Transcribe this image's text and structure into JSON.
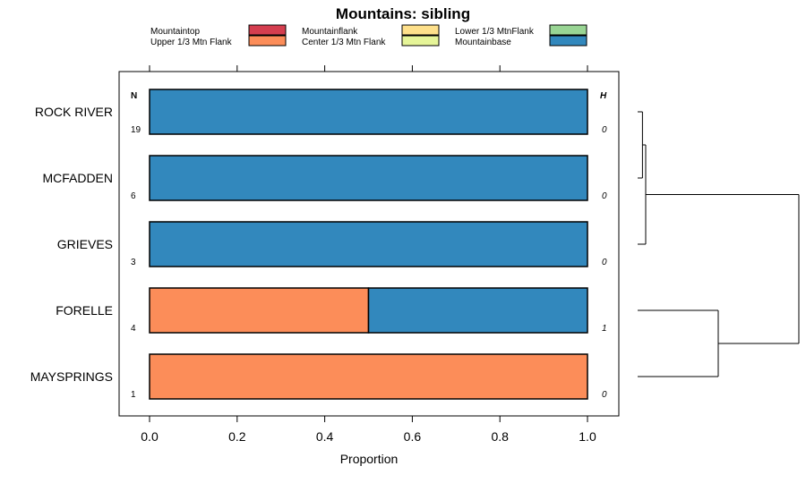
{
  "chart_data": {
    "type": "bar",
    "orientation": "horizontal",
    "stacked": true,
    "title": "Mountains: sibling",
    "xlabel": "Proportion",
    "ylabel": "",
    "xlim": [
      0,
      1
    ],
    "xticks": [
      0.0,
      0.2,
      0.4,
      0.6,
      0.8,
      1.0
    ],
    "xtick_labels": [
      "0.0",
      "0.2",
      "0.4",
      "0.6",
      "0.8",
      "1.0"
    ],
    "n_header": "N",
    "h_header": "H",
    "categories": [
      "ROCK RIVER",
      "MCFADDEN",
      "GRIEVES",
      "FORELLE",
      "MAYSPRINGS"
    ],
    "n_values": [
      "19",
      "6",
      "3",
      "4",
      "1"
    ],
    "h_values": [
      "0",
      "0",
      "0",
      "1",
      "0"
    ],
    "legend": [
      {
        "name": "Mountaintop",
        "color": "#d53e4f"
      },
      {
        "name": "Upper 1/3 Mtn Flank",
        "color": "#fc8d59"
      },
      {
        "name": "Mountainflank",
        "color": "#fee08b"
      },
      {
        "name": "Center 1/3 Mtn Flank",
        "color": "#e6f598"
      },
      {
        "name": "Lower 1/3 MtnFlank",
        "color": "#99d594"
      },
      {
        "name": "Mountainbase",
        "color": "#3288bd"
      }
    ],
    "series": [
      {
        "name": "Mountaintop",
        "color": "#d53e4f",
        "values": [
          0,
          0,
          0,
          0,
          0
        ]
      },
      {
        "name": "Upper 1/3 Mtn Flank",
        "color": "#fc8d59",
        "values": [
          0,
          0,
          0,
          0.5,
          1
        ]
      },
      {
        "name": "Mountainflank",
        "color": "#fee08b",
        "values": [
          0,
          0,
          0,
          0,
          0
        ]
      },
      {
        "name": "Center 1/3 Mtn Flank",
        "color": "#e6f598",
        "values": [
          0,
          0,
          0,
          0,
          0
        ]
      },
      {
        "name": "Lower 1/3 MtnFlank",
        "color": "#99d594",
        "values": [
          0,
          0,
          0,
          0,
          0
        ]
      },
      {
        "name": "Mountainbase",
        "color": "#3288bd",
        "values": [
          1,
          1,
          1,
          0.5,
          0
        ]
      }
    ],
    "dendrogram": {
      "type": "hierarchical-clustering",
      "merges": [
        {
          "members": [
            "ROCK RIVER",
            "MCFADDEN"
          ],
          "height": 0.03
        },
        {
          "members": [
            "ROCK RIVER",
            "MCFADDEN",
            "GRIEVES"
          ],
          "height": 0.05
        },
        {
          "members": [
            "FORELLE",
            "MAYSPRINGS"
          ],
          "height": 0.5
        },
        {
          "members": [
            "ROCK RIVER",
            "MCFADDEN",
            "GRIEVES",
            "FORELLE",
            "MAYSPRINGS"
          ],
          "height": 1.0
        }
      ]
    }
  }
}
